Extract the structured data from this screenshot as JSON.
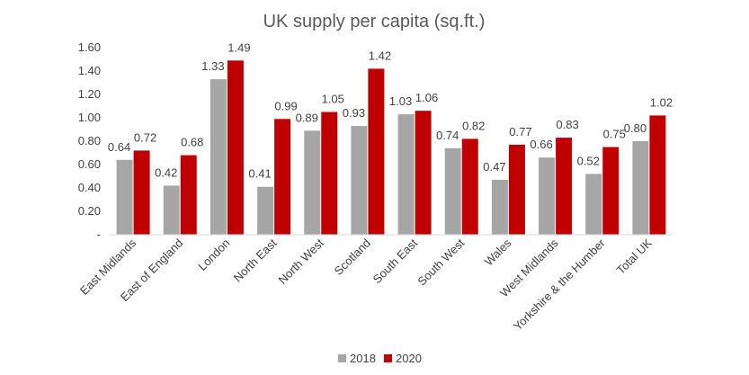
{
  "chart_data": {
    "type": "bar",
    "title": "UK supply per capita (sq.ft.)",
    "xlabel": "",
    "ylabel": "",
    "ylim": [
      0,
      1.6
    ],
    "yticks": [
      "-",
      "0.20",
      "0.40",
      "0.60",
      "0.80",
      "1.00",
      "1.20",
      "1.40",
      "1.60"
    ],
    "grid": false,
    "legend_position": "bottom",
    "categories": [
      "East Midlands",
      "East of England",
      "London",
      "North East",
      "North West",
      "Scotland",
      "South East",
      "South West",
      "Wales",
      "West Midlands",
      "Yorkshire & the Humber",
      "Total UK"
    ],
    "series": [
      {
        "name": "2018",
        "color": "#a6a6a6",
        "values": [
          0.64,
          0.42,
          1.33,
          0.41,
          0.89,
          0.93,
          1.03,
          0.74,
          0.47,
          0.66,
          0.52,
          0.8
        ],
        "labels": [
          "0.64",
          "0.42",
          "1.33",
          "0.41",
          "0.89",
          "0.93",
          "1.03",
          "0.74",
          "0.47",
          "0.66",
          "0.52",
          "0.80"
        ]
      },
      {
        "name": "2020",
        "color": "#c00000",
        "values": [
          0.72,
          0.68,
          1.49,
          0.99,
          1.05,
          1.42,
          1.06,
          0.82,
          0.77,
          0.83,
          0.75,
          1.02
        ],
        "labels": [
          "0.72",
          "0.68",
          "1.49",
          "0.99",
          "1.05",
          "1.42",
          "1.06",
          "0.82",
          "0.77",
          "0.83",
          "0.75",
          "1.02"
        ]
      }
    ]
  }
}
